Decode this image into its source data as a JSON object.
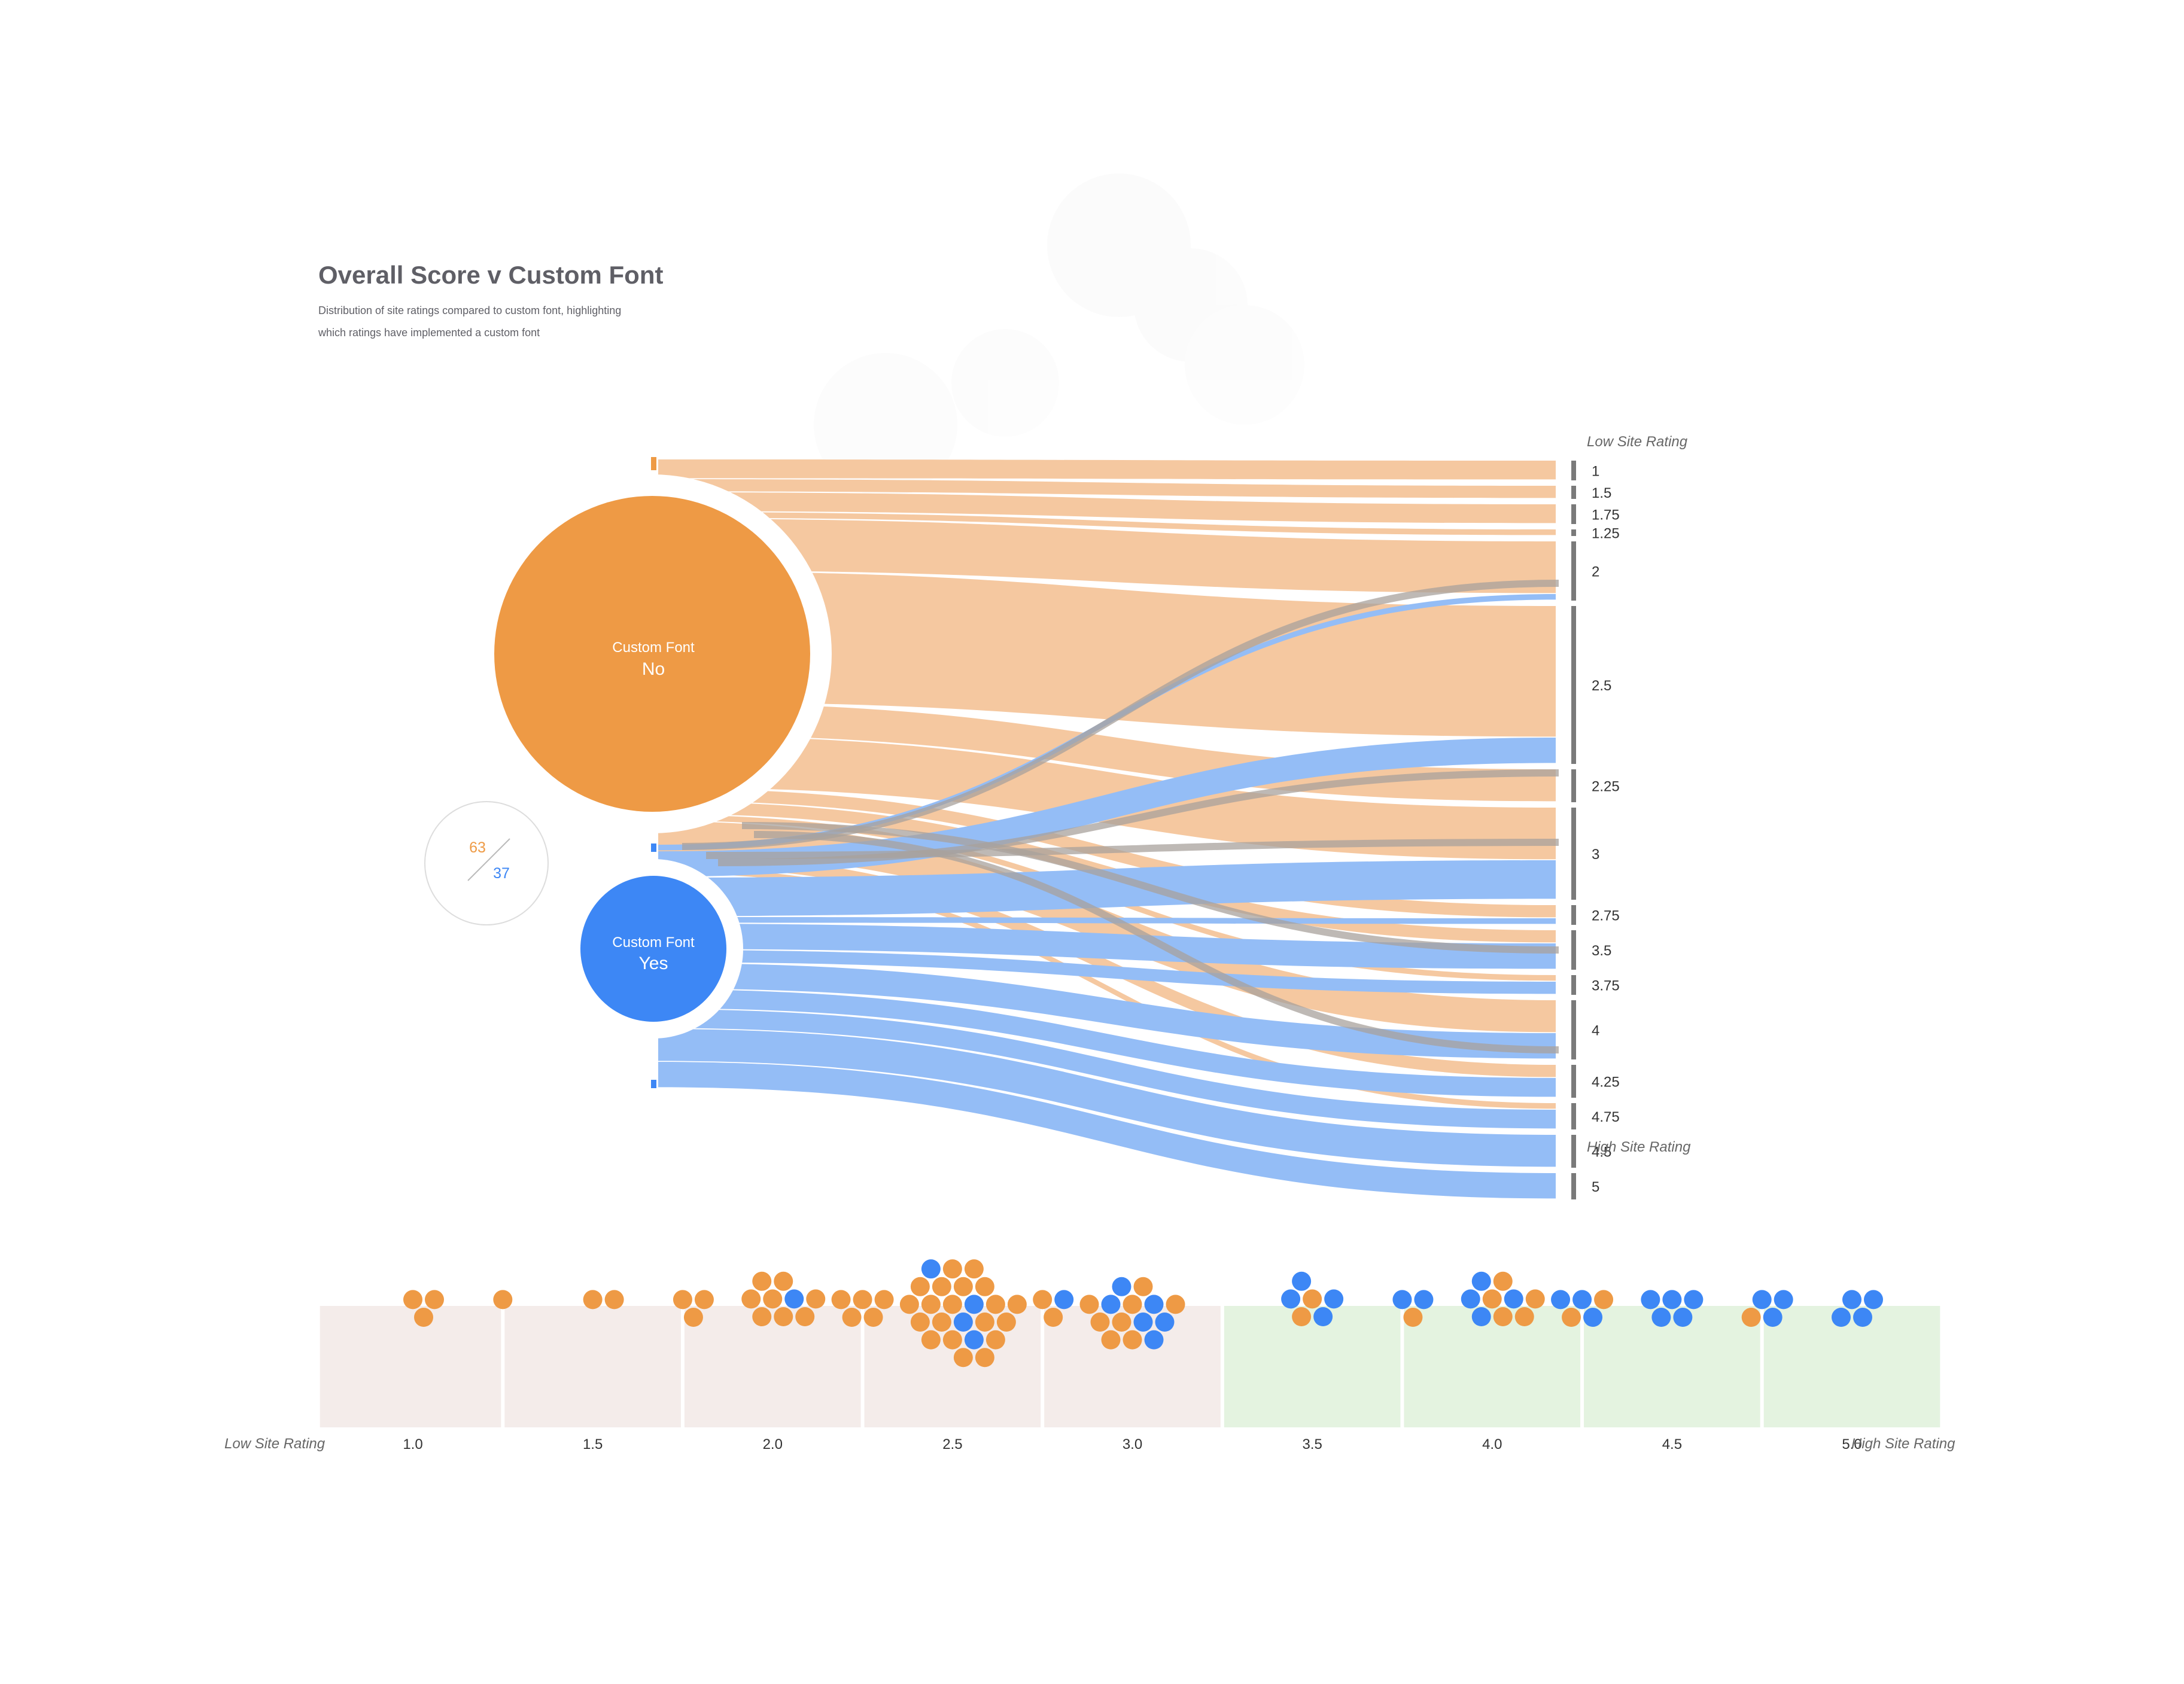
{
  "title": "Overall Score v Custom Font",
  "subtitle_lines": [
    "Distribution of site ratings compared to custom font, highlighting",
    "which ratings have implemented a custom font"
  ],
  "colors": {
    "no": "#EE9A45",
    "yes": "#3D87F5",
    "no_flow": "#F5C8A0",
    "yes_flow": "#94BDF6",
    "grey_flow": "#A8A29C",
    "bar": "#7A7A7A",
    "low_band": "#F4ECEA",
    "high_band": "#E4F3E0"
  },
  "summary": {
    "no_count": "63",
    "yes_count": "37"
  },
  "chart_data": [
    {
      "type": "sankey",
      "sources": [
        {
          "key": "no",
          "label_top": "Custom Font",
          "label_bottom": "No",
          "count": 63
        },
        {
          "key": "yes",
          "label_top": "Custom Font",
          "label_bottom": "Yes",
          "count": 37
        }
      ],
      "axis_top_label": "Low Site Rating",
      "axis_bottom_label": "High Site Rating",
      "targets": [
        {
          "label": "1",
          "no": 3,
          "yes": 0
        },
        {
          "label": "1.5",
          "no": 2,
          "yes": 0
        },
        {
          "label": "1.75",
          "no": 3,
          "yes": 0
        },
        {
          "label": "1.25",
          "no": 1,
          "yes": 0
        },
        {
          "label": "2",
          "no": 8,
          "yes": 1
        },
        {
          "label": "2.5",
          "no": 20,
          "yes": 4
        },
        {
          "label": "2.25",
          "no": 5,
          "yes": 0
        },
        {
          "label": "3",
          "no": 8,
          "yes": 6
        },
        {
          "label": "2.75",
          "no": 2,
          "yes": 1
        },
        {
          "label": "3.5",
          "no": 2,
          "yes": 4
        },
        {
          "label": "3.75",
          "no": 1,
          "yes": 2
        },
        {
          "label": "4",
          "no": 5,
          "yes": 4
        },
        {
          "label": "4.25",
          "no": 2,
          "yes": 3
        },
        {
          "label": "4.75",
          "no": 1,
          "yes": 3
        },
        {
          "label": "4.5",
          "no": 0,
          "yes": 5
        },
        {
          "label": "5",
          "no": 0,
          "yes": 4
        }
      ]
    },
    {
      "type": "beeswarm",
      "x_label_left": "Low Site Rating",
      "x_label_right": "High Site Rating",
      "xlim": [
        1.0,
        5.0
      ],
      "ticks": [
        "1.0",
        "1.5",
        "2.0",
        "2.5",
        "3.0",
        "3.5",
        "4.0",
        "4.5",
        "5.0"
      ],
      "groups": [
        {
          "x": 1.0,
          "no": 3,
          "yes": 0
        },
        {
          "x": 1.25,
          "no": 1,
          "yes": 0
        },
        {
          "x": 1.5,
          "no": 2,
          "yes": 0
        },
        {
          "x": 1.75,
          "no": 3,
          "yes": 0
        },
        {
          "x": 2.0,
          "no": 8,
          "yes": 1
        },
        {
          "x": 2.25,
          "no": 5,
          "yes": 0
        },
        {
          "x": 2.5,
          "no": 20,
          "yes": 4
        },
        {
          "x": 2.75,
          "no": 2,
          "yes": 1
        },
        {
          "x": 3.0,
          "no": 8,
          "yes": 6
        },
        {
          "x": 3.5,
          "no": 2,
          "yes": 4
        },
        {
          "x": 3.75,
          "no": 1,
          "yes": 2
        },
        {
          "x": 4.0,
          "no": 5,
          "yes": 4
        },
        {
          "x": 4.25,
          "no": 2,
          "yes": 3
        },
        {
          "x": 4.5,
          "no": 0,
          "yes": 5
        },
        {
          "x": 4.75,
          "no": 1,
          "yes": 3
        },
        {
          "x": 5.0,
          "no": 0,
          "yes": 4
        }
      ]
    }
  ]
}
